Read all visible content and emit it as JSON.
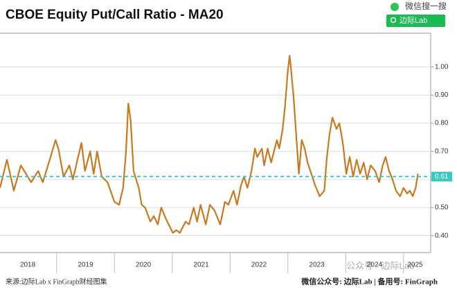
{
  "badge": {
    "label": "微信搜一搜",
    "query": "边际Lab"
  },
  "footer": {
    "source": "来源:边际Lab x FinGraph财经图集",
    "account": "微信公众号: 边际Lab  |  备用号: FinGraph"
  },
  "watermark": "公众号 · 边际Lab",
  "chart_data": {
    "type": "line",
    "title": "CBOE Equity Put/Call Ratio - MA20",
    "color": "#c8781f",
    "x": [
      2018.02,
      2018.14,
      2018.26,
      2018.38,
      2018.56,
      2018.68,
      2018.76,
      2018.88,
      2018.98,
      2019.03,
      2019.12,
      2019.22,
      2019.28,
      2019.36,
      2019.43,
      2019.49,
      2019.58,
      2019.64,
      2019.7,
      2019.78,
      2019.88,
      2020.0,
      2020.08,
      2020.15,
      2020.2,
      2020.24,
      2020.28,
      2020.33,
      2020.42,
      2020.47,
      2020.53,
      2020.62,
      2020.68,
      2020.75,
      2020.81,
      2020.89,
      2021.01,
      2021.07,
      2021.13,
      2021.23,
      2021.29,
      2021.37,
      2021.43,
      2021.49,
      2021.58,
      2021.65,
      2021.73,
      2021.83,
      2021.91,
      2021.97,
      2022.06,
      2022.12,
      2022.19,
      2022.24,
      2022.3,
      2022.37,
      2022.43,
      2022.47,
      2022.55,
      2022.59,
      2022.65,
      2022.71,
      2022.81,
      2022.85,
      2022.91,
      2022.95,
      2023.0,
      2023.03,
      2023.05,
      2023.1,
      2023.15,
      2023.19,
      2023.24,
      2023.29,
      2023.34,
      2023.39,
      2023.47,
      2023.55,
      2023.63,
      2023.67,
      2023.72,
      2023.77,
      2023.84,
      2023.89,
      2023.95,
      2024.01,
      2024.07,
      2024.13,
      2024.19,
      2024.25,
      2024.31,
      2024.37,
      2024.43,
      2024.51,
      2024.58,
      2024.64,
      2024.69,
      2024.75,
      2024.81,
      2024.87,
      2024.94,
      2025.0,
      2025.06,
      2025.11,
      2025.16,
      2025.21,
      2025.25
    ],
    "values": [
      0.57,
      0.67,
      0.56,
      0.65,
      0.59,
      0.63,
      0.59,
      0.67,
      0.74,
      0.71,
      0.61,
      0.65,
      0.6,
      0.67,
      0.73,
      0.63,
      0.7,
      0.62,
      0.7,
      0.61,
      0.59,
      0.52,
      0.51,
      0.57,
      0.7,
      0.87,
      0.81,
      0.63,
      0.57,
      0.51,
      0.5,
      0.45,
      0.47,
      0.44,
      0.5,
      0.46,
      0.41,
      0.42,
      0.41,
      0.45,
      0.44,
      0.5,
      0.45,
      0.51,
      0.44,
      0.51,
      0.49,
      0.44,
      0.52,
      0.51,
      0.56,
      0.51,
      0.58,
      0.61,
      0.57,
      0.63,
      0.71,
      0.68,
      0.71,
      0.65,
      0.71,
      0.66,
      0.74,
      0.71,
      0.78,
      0.86,
      0.99,
      1.04,
      1.0,
      0.89,
      0.74,
      0.62,
      0.74,
      0.71,
      0.66,
      0.63,
      0.58,
      0.54,
      0.56,
      0.67,
      0.76,
      0.82,
      0.78,
      0.8,
      0.73,
      0.62,
      0.68,
      0.61,
      0.67,
      0.62,
      0.66,
      0.6,
      0.65,
      0.63,
      0.59,
      0.65,
      0.68,
      0.63,
      0.6,
      0.56,
      0.54,
      0.57,
      0.55,
      0.56,
      0.54,
      0.57,
      0.62
    ],
    "xlim": [
      2018.02,
      2025.47
    ],
    "xticks": [
      {
        "value": 2018.5,
        "label": "2018"
      },
      {
        "value": 2019.5,
        "label": "2019"
      },
      {
        "value": 2020.5,
        "label": "2020"
      },
      {
        "value": 2021.5,
        "label": "2021"
      },
      {
        "value": 2022.5,
        "label": "2022"
      },
      {
        "value": 2023.5,
        "label": "2023"
      },
      {
        "value": 2024.5,
        "label": "2024"
      },
      {
        "value": 2025.2,
        "label": "2025"
      }
    ],
    "ylim": [
      0.34,
      1.12
    ],
    "yticks": [
      {
        "value": 0.4,
        "label": "0.40"
      },
      {
        "value": 0.5,
        "label": "0.50"
      },
      {
        "value": 0.6,
        "label": "0.60"
      },
      {
        "value": 0.7,
        "label": "0.70"
      },
      {
        "value": 0.8,
        "label": "0.80"
      },
      {
        "value": 0.9,
        "label": "0.90"
      },
      {
        "value": 1.0,
        "label": "1.00"
      }
    ],
    "grid": true,
    "reference_line": {
      "value": 0.61,
      "label": "0.61",
      "color": "#3cc8c0"
    }
  }
}
